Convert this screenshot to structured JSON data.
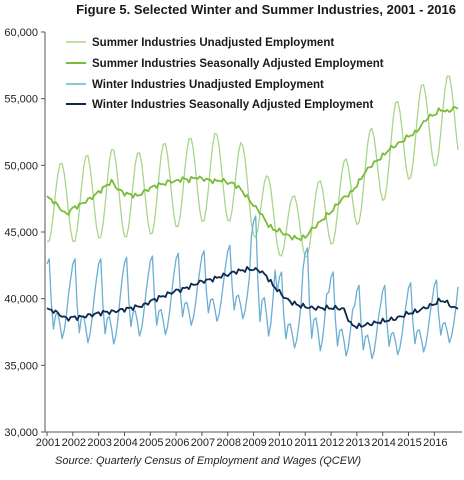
{
  "chart_data": {
    "type": "line",
    "title": "Figure 5. Selected Winter and Summer Industries, 2001 - 2016",
    "source": "Source: Quarterly Census of Employment and Wages (QCEW)",
    "xlabel": "",
    "ylabel": "",
    "ylim": [
      30000,
      60000
    ],
    "yticks": [
      "30,000",
      "35,000",
      "40,000",
      "45,000",
      "50,000",
      "55,000",
      "60,000"
    ],
    "categories": [
      "2001",
      "2002",
      "2003",
      "2004",
      "2005",
      "2006",
      "2007",
      "2008",
      "2009",
      "2010",
      "2011",
      "2012",
      "2013",
      "2014",
      "2015",
      "2016"
    ],
    "x_unit": "monthly, Jan 2001 - Dec 2016",
    "grid": false,
    "legend_position": "top-left",
    "series": [
      {
        "name": "Summer Industries  Unadjusted Employment",
        "color": "#a8d68a",
        "annual_mean": [
          47200,
          47500,
          48000,
          47700,
          48400,
          48800,
          49200,
          48700,
          46500,
          45200,
          46100,
          47500,
          49500,
          51500,
          52800,
          53500
        ],
        "seasonal_amplitude": [
          3000,
          3300,
          3300,
          3300,
          3300,
          3300,
          3300,
          3100,
          2800,
          2500,
          2700,
          2900,
          3200,
          3300,
          3300,
          3300
        ]
      },
      {
        "name": "Summer Industries Seasonally Adjusted Employment",
        "color": "#7bbb3a",
        "values_quarterly": [
          47600,
          47300,
          46800,
          46300,
          46800,
          47000,
          47300,
          47600,
          48000,
          48400,
          48800,
          48200,
          47900,
          47800,
          47700,
          48000,
          48300,
          48500,
          48600,
          48800,
          48800,
          49000,
          48900,
          49100,
          49000,
          48900,
          48800,
          48900,
          48700,
          48600,
          48200,
          47600,
          47000,
          46500,
          45700,
          45200,
          45100,
          44800,
          44600,
          44500,
          44600,
          45200,
          45600,
          46100,
          46500,
          47100,
          47600,
          47900,
          48500,
          49300,
          49900,
          50300,
          50700,
          51200,
          51500,
          51800,
          52200,
          52400,
          53000,
          53600,
          53800,
          54200,
          54000,
          54300
        ]
      },
      {
        "name": "Winter Industries Unadjusted Employment",
        "color": "#6aaed3",
        "peaks": [
          43000,
          43000,
          43000,
          43100,
          43200,
          43400,
          43600,
          44000,
          46200,
          42000,
          43800,
          42000,
          41000,
          41000,
          41200,
          41400,
          42400
        ],
        "troughs": [
          37000,
          36700,
          36600,
          37200,
          37300,
          38000,
          38300,
          38500,
          37200,
          36300,
          36100,
          35700,
          35500,
          35800,
          36000,
          36700
        ]
      },
      {
        "name": "Winter Industries Seasonally Adjusted Employment",
        "color": "#0e2a4a",
        "values_quarterly": [
          39200,
          39100,
          38800,
          38500,
          38600,
          38600,
          38700,
          38800,
          38900,
          39000,
          39000,
          39100,
          39200,
          39300,
          39400,
          39500,
          39800,
          40000,
          40200,
          40400,
          40600,
          40700,
          40900,
          41100,
          41300,
          41400,
          41500,
          41700,
          41800,
          42000,
          42100,
          42200,
          42200,
          42100,
          41700,
          41000,
          40500,
          40000,
          39700,
          39500,
          39400,
          39300,
          39300,
          39300,
          39300,
          39300,
          39200,
          38100,
          37900,
          38000,
          38100,
          38200,
          38300,
          38400,
          38500,
          38700,
          38900,
          39000,
          39200,
          39400,
          39600,
          39900,
          39700,
          39300
        ]
      }
    ]
  }
}
